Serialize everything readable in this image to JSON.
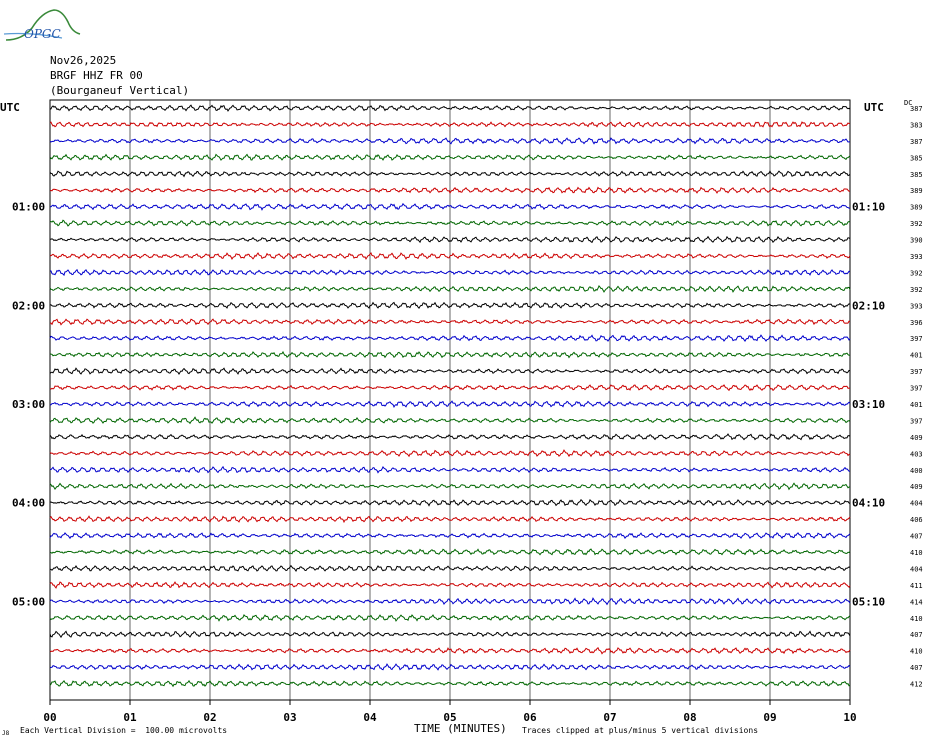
{
  "logo": {
    "text": "OPGC"
  },
  "header": {
    "date": "Nov26,2025",
    "station": "BRGF HHZ FR 00",
    "location": "(Bourganeuf Vertical)"
  },
  "left_axis_label": "UTC",
  "right_axis_label": "UTC",
  "dc_label": "DC",
  "footer": {
    "scale": "Each Vertical Division =  100.00 microvolts",
    "xlabel": "TIME (MINUTES)",
    "clip_note": "Traces clipped at plus/minus 5 vertical divisions",
    "corner_mark": "J8"
  },
  "colors": {
    "trace_cycle": [
      "#000000",
      "#cc0000",
      "#0000cc",
      "#006600"
    ],
    "grid": "#000000"
  },
  "chart_data": {
    "type": "line",
    "xlabel": "TIME (MINUTES)",
    "xlim": [
      0,
      10
    ],
    "x_ticks": [
      "00",
      "01",
      "02",
      "03",
      "04",
      "05",
      "06",
      "07",
      "08",
      "09",
      "10"
    ],
    "trace_count": 36,
    "minutes_per_trace": 10,
    "left_time_labels": [
      {
        "trace": 6,
        "label": "01:00"
      },
      {
        "trace": 12,
        "label": "02:00"
      },
      {
        "trace": 18,
        "label": "03:00"
      },
      {
        "trace": 24,
        "label": "04:00"
      },
      {
        "trace": 30,
        "label": "05:00"
      }
    ],
    "right_time_labels": [
      {
        "trace": 6,
        "label": "01:10"
      },
      {
        "trace": 12,
        "label": "02:10"
      },
      {
        "trace": 18,
        "label": "03:10"
      },
      {
        "trace": 24,
        "label": "04:10"
      },
      {
        "trace": 30,
        "label": "05:10"
      }
    ],
    "dc_offsets": [
      387,
      383,
      387,
      385,
      385,
      389,
      389,
      392,
      390,
      393,
      392,
      392,
      393,
      396,
      397,
      401,
      397,
      397,
      401,
      397,
      409,
      403,
      400,
      409,
      404,
      406,
      407,
      410,
      404,
      411,
      414,
      410,
      407,
      410,
      407,
      412
    ]
  }
}
